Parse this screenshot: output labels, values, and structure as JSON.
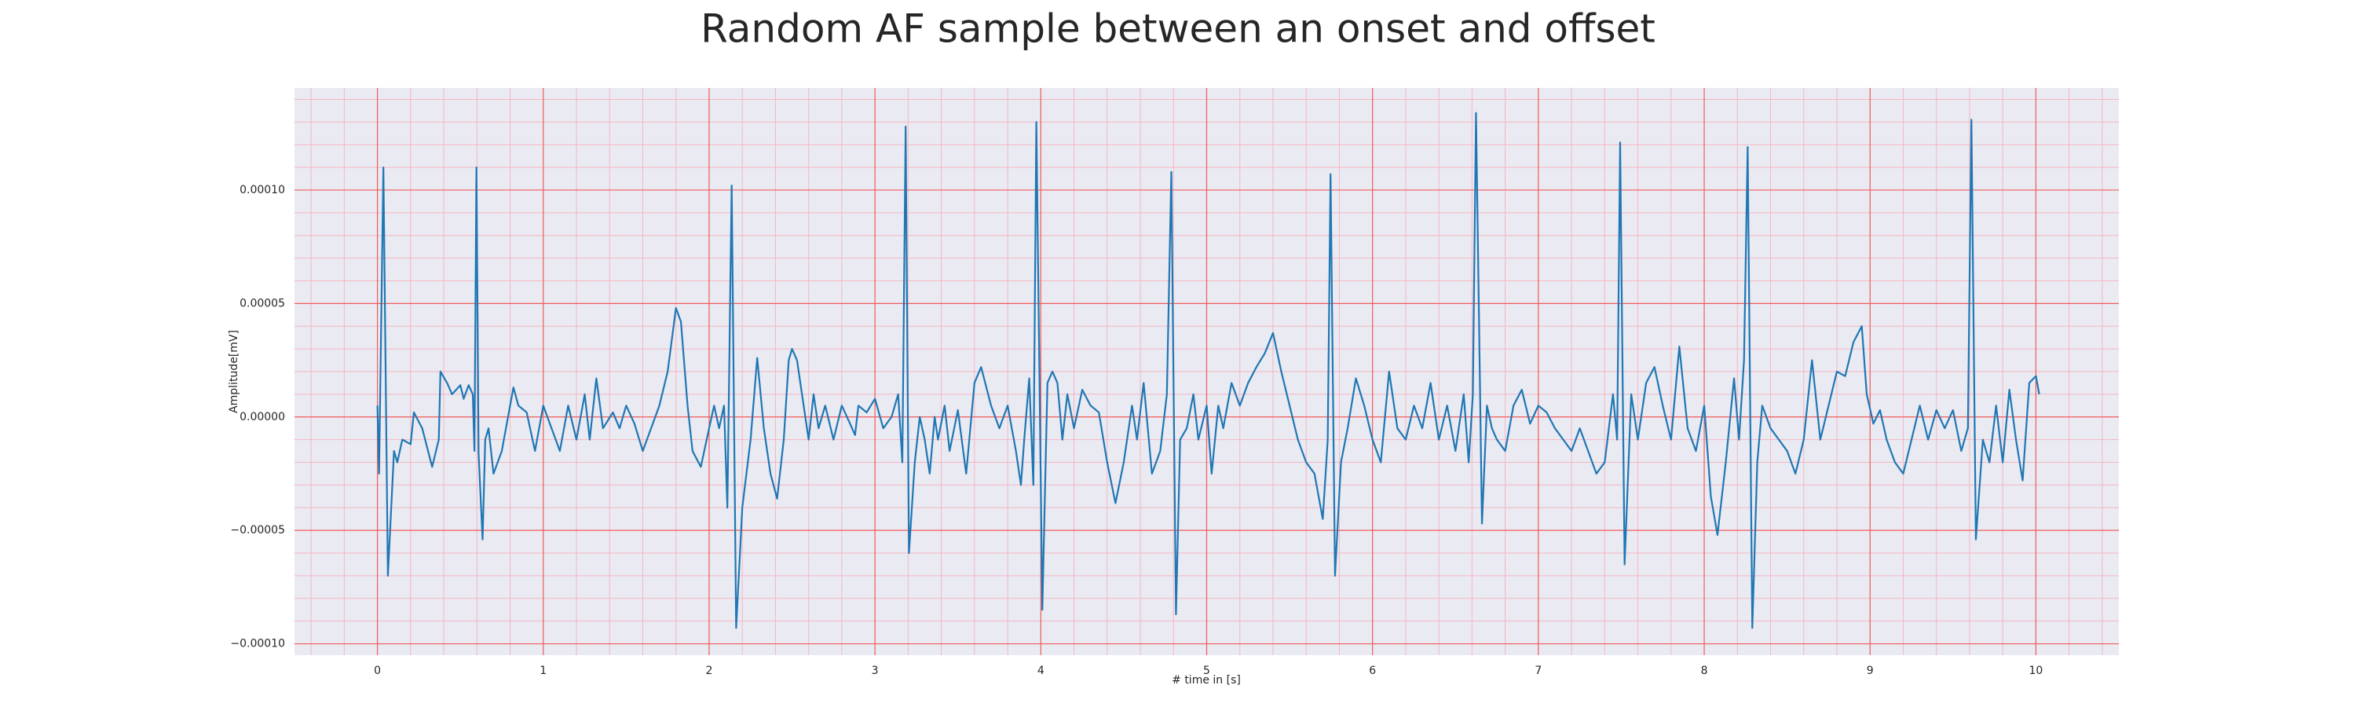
{
  "chart_data": {
    "type": "line",
    "title": "Random AF sample between an onset and offset",
    "x_label": "# time in [s]",
    "y_label": "Amplitude[mV]",
    "color": "#1f77b4",
    "grid": true,
    "minor_grid": true,
    "xlim": [
      -0.5,
      10.5
    ],
    "ylim": [
      -0.000105,
      0.000145
    ],
    "xticks": [
      0,
      1,
      2,
      3,
      4,
      5,
      6,
      7,
      8,
      9,
      10
    ],
    "yticks": [
      {
        "value": -0.0001,
        "label": "−0.00010"
      },
      {
        "value": -5e-05,
        "label": "−0.00005"
      },
      {
        "value": 0,
        "label": "0.00000"
      },
      {
        "value": 5e-05,
        "label": "0.00005"
      },
      {
        "value": 0.0001,
        "label": "0.00010"
      }
    ],
    "x": [
      0,
      0.01,
      0.036,
      0.063,
      0.1,
      0.12,
      0.15,
      0.2,
      0.22,
      0.27,
      0.33,
      0.37,
      0.38,
      0.42,
      0.45,
      0.5,
      0.52,
      0.55,
      0.575,
      0.585,
      0.597,
      0.61,
      0.634,
      0.65,
      0.67,
      0.7,
      0.75,
      0.8,
      0.82,
      0.85,
      0.9,
      0.95,
      1.0,
      1.05,
      1.1,
      1.15,
      1.2,
      1.25,
      1.28,
      1.32,
      1.36,
      1.42,
      1.46,
      1.5,
      1.55,
      1.6,
      1.65,
      1.7,
      1.75,
      1.8,
      1.83,
      1.87,
      1.9,
      1.95,
      2.0,
      2.03,
      2.06,
      2.09,
      2.11,
      2.136,
      2.163,
      2.2,
      2.25,
      2.29,
      2.33,
      2.37,
      2.41,
      2.45,
      2.48,
      2.5,
      2.53,
      2.57,
      2.6,
      2.63,
      2.66,
      2.7,
      2.75,
      2.8,
      2.85,
      2.88,
      2.9,
      2.95,
      3.0,
      3.05,
      3.1,
      3.14,
      3.165,
      3.185,
      3.205,
      3.24,
      3.27,
      3.3,
      3.33,
      3.36,
      3.38,
      3.42,
      3.45,
      3.5,
      3.55,
      3.6,
      3.64,
      3.7,
      3.75,
      3.8,
      3.85,
      3.88,
      3.9,
      3.93,
      3.955,
      3.973,
      4.009,
      4.04,
      4.07,
      4.1,
      4.13,
      4.16,
      4.2,
      4.25,
      4.3,
      4.35,
      4.4,
      4.45,
      4.5,
      4.55,
      4.58,
      4.62,
      4.67,
      4.72,
      4.76,
      4.787,
      4.815,
      4.84,
      4.88,
      4.92,
      4.95,
      5.0,
      5.03,
      5.07,
      5.1,
      5.15,
      5.2,
      5.25,
      5.3,
      5.35,
      5.4,
      5.45,
      5.5,
      5.55,
      5.6,
      5.65,
      5.7,
      5.73,
      5.747,
      5.774,
      5.81,
      5.85,
      5.9,
      5.95,
      6.0,
      6.05,
      6.1,
      6.15,
      6.2,
      6.25,
      6.3,
      6.35,
      6.4,
      6.45,
      6.5,
      6.55,
      6.58,
      6.605,
      6.624,
      6.66,
      6.69,
      6.72,
      6.75,
      6.8,
      6.85,
      6.9,
      6.95,
      7.0,
      7.05,
      7.1,
      7.15,
      7.2,
      7.25,
      7.3,
      7.35,
      7.4,
      7.45,
      7.475,
      7.493,
      7.52,
      7.56,
      7.6,
      7.65,
      7.7,
      7.75,
      7.8,
      7.85,
      7.9,
      7.95,
      8.0,
      8.04,
      8.08,
      8.13,
      8.18,
      8.21,
      8.24,
      8.262,
      8.29,
      8.32,
      8.35,
      8.4,
      8.45,
      8.5,
      8.55,
      8.6,
      8.65,
      8.7,
      8.75,
      8.8,
      8.85,
      8.9,
      8.95,
      8.98,
      9.02,
      9.06,
      9.1,
      9.15,
      9.2,
      9.25,
      9.3,
      9.35,
      9.4,
      9.45,
      9.5,
      9.55,
      9.59,
      9.611,
      9.638,
      9.68,
      9.72,
      9.76,
      9.8,
      9.84,
      9.88,
      9.92,
      9.96,
      10.0,
      10.02
    ],
    "values": [
      5e-06,
      -2.5e-05,
      0.00011,
      -7e-05,
      -1.5e-05,
      -2e-05,
      -1e-05,
      -1.2e-05,
      2e-06,
      -5e-06,
      -2.2e-05,
      -1e-05,
      2e-05,
      1.5e-05,
      1e-05,
      1.4e-05,
      8e-06,
      1.4e-05,
      1e-05,
      -1.5e-05,
      0.00011,
      -1.6e-05,
      -5.4e-05,
      -1e-05,
      -5e-06,
      -2.5e-05,
      -1.5e-05,
      5e-06,
      1.3e-05,
      5e-06,
      2e-06,
      -1.5e-05,
      5e-06,
      -5e-06,
      -1.5e-05,
      5e-06,
      -1e-05,
      1e-05,
      -1e-05,
      1.7e-05,
      -5e-06,
      2e-06,
      -5e-06,
      5e-06,
      -3e-06,
      -1.5e-05,
      -5e-06,
      5e-06,
      2e-05,
      4.8e-05,
      4.2e-05,
      5e-06,
      -1.5e-05,
      -2.2e-05,
      -5e-06,
      5e-06,
      -5e-06,
      5e-06,
      -4e-05,
      0.000102,
      -9.3e-05,
      -4e-05,
      -1e-05,
      2.6e-05,
      -5e-06,
      -2.5e-05,
      -3.6e-05,
      -1e-05,
      2.5e-05,
      3e-05,
      2.5e-05,
      5e-06,
      -1e-05,
      1e-05,
      -5e-06,
      5e-06,
      -1e-05,
      5e-06,
      -3e-06,
      -8e-06,
      5e-06,
      2e-06,
      8e-06,
      -5e-06,
      0,
      1e-05,
      -2e-05,
      0.000128,
      -6e-05,
      -2e-05,
      0,
      -1e-05,
      -2.5e-05,
      0,
      -1e-05,
      5e-06,
      -1.5e-05,
      3e-06,
      -2.5e-05,
      1.5e-05,
      2.2e-05,
      5e-06,
      -5e-06,
      5e-06,
      -1.5e-05,
      -3e-05,
      -1e-05,
      1.7e-05,
      -3e-05,
      0.00013,
      -8.5e-05,
      1.5e-05,
      2e-05,
      1.5e-05,
      -1e-05,
      1e-05,
      -5e-06,
      1.2e-05,
      5e-06,
      2e-06,
      -2e-05,
      -3.8e-05,
      -2e-05,
      5e-06,
      -1e-05,
      1.5e-05,
      -2.5e-05,
      -1.5e-05,
      1e-05,
      0.000108,
      -8.7e-05,
      -1e-05,
      -5e-06,
      1e-05,
      -1e-05,
      5e-06,
      -2.5e-05,
      5e-06,
      -5e-06,
      1.5e-05,
      5e-06,
      1.5e-05,
      2.2e-05,
      2.8e-05,
      3.7e-05,
      2e-05,
      5e-06,
      -1e-05,
      -2e-05,
      -2.5e-05,
      -4.5e-05,
      -1e-05,
      0.000107,
      -7e-05,
      -2e-05,
      -5e-06,
      1.7e-05,
      5e-06,
      -1e-05,
      -2e-05,
      2e-05,
      -5e-06,
      -1e-05,
      5e-06,
      -5e-06,
      1.5e-05,
      -1e-05,
      5e-06,
      -1.5e-05,
      1e-05,
      -2e-05,
      1e-05,
      0.000134,
      -4.7e-05,
      5e-06,
      -5e-06,
      -1e-05,
      -1.5e-05,
      5e-06,
      1.2e-05,
      -3e-06,
      5e-06,
      2e-06,
      -5e-06,
      -1e-05,
      -1.5e-05,
      -5e-06,
      -1.5e-05,
      -2.5e-05,
      -2e-05,
      1e-05,
      -1e-05,
      0.000121,
      -6.5e-05,
      1e-05,
      -1e-05,
      1.5e-05,
      2.2e-05,
      5e-06,
      -1e-05,
      3.1e-05,
      -5e-06,
      -1.5e-05,
      5e-06,
      -3.5e-05,
      -5.2e-05,
      -2e-05,
      1.7e-05,
      -1e-05,
      2.5e-05,
      0.000119,
      -9.3e-05,
      -2e-05,
      5e-06,
      -5e-06,
      -1e-05,
      -1.5e-05,
      -2.5e-05,
      -1e-05,
      2.5e-05,
      -1e-05,
      5e-06,
      2e-05,
      1.8e-05,
      3.3e-05,
      4e-05,
      1e-05,
      -3e-06,
      3e-06,
      -1e-05,
      -2e-05,
      -2.5e-05,
      -1e-05,
      5e-06,
      -1e-05,
      3e-06,
      -5e-06,
      3e-06,
      -1.5e-05,
      -5e-06,
      0.000131,
      -5.4e-05,
      -1e-05,
      -2e-05,
      5e-06,
      -2e-05,
      1.2e-05,
      -1e-05,
      -2.8e-05,
      1.5e-05,
      1.8e-05,
      1e-05
    ]
  }
}
